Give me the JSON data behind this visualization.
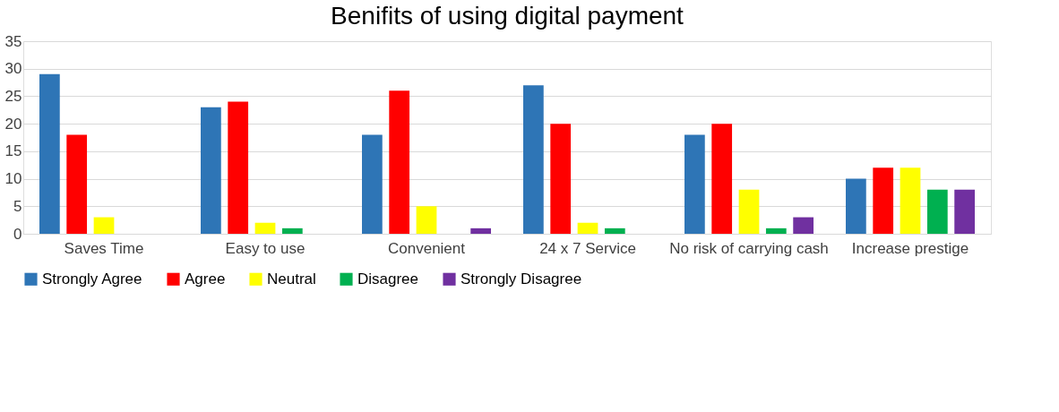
{
  "chart_data": {
    "type": "bar",
    "title": "Benifits of  using digital payment",
    "categories": [
      "Saves Time",
      "Easy to use",
      "Convenient",
      "24 x 7 Service",
      "No risk of carrying cash",
      "Increase prestige"
    ],
    "series": [
      {
        "name": "Strongly Agree",
        "color": "#2e75b6",
        "values": [
          29,
          23,
          18,
          27,
          18,
          10
        ]
      },
      {
        "name": "Agree",
        "color": "#ff0000",
        "values": [
          18,
          24,
          26,
          20,
          20,
          12
        ]
      },
      {
        "name": "Neutral",
        "color": "#ffff00",
        "values": [
          3,
          2,
          5,
          2,
          8,
          12
        ]
      },
      {
        "name": "Disagree",
        "color": "#00b050",
        "values": [
          0,
          1,
          0,
          1,
          1,
          8
        ]
      },
      {
        "name": "Strongly Disagree",
        "color": "#7030a0",
        "values": [
          0,
          0,
          1,
          0,
          3,
          8
        ]
      }
    ],
    "ylim": [
      0,
      35
    ],
    "yticks": [
      0,
      5,
      10,
      15,
      20,
      25,
      30,
      35
    ],
    "grid": "y",
    "legend": "bottom"
  }
}
